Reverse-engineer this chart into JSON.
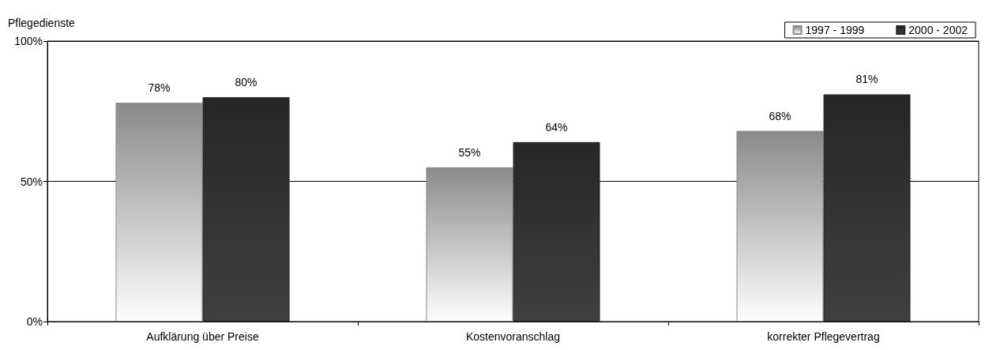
{
  "chart_data": {
    "type": "bar",
    "ylabel": "Pflegedienste",
    "categories": [
      "Aufklärung über Preise",
      "Kostenvoranschlag",
      "korrekter Pflegevertrag"
    ],
    "series": [
      {
        "name": "1997 - 1999",
        "color": "#8a8a8a",
        "values": [
          78,
          55,
          68
        ],
        "value_labels": [
          "78%",
          "55%",
          "68%"
        ]
      },
      {
        "name": "2000 - 2002",
        "color": "#262626",
        "values": [
          80,
          64,
          81
        ],
        "value_labels": [
          "80%",
          "64%",
          "81%"
        ]
      }
    ],
    "ylim": [
      0,
      100
    ],
    "yticks": [
      {
        "value": 0,
        "label": "0%"
      },
      {
        "value": 50,
        "label": "50%"
      },
      {
        "value": 100,
        "label": "100%"
      }
    ],
    "grid": "y",
    "legend": "top right"
  }
}
